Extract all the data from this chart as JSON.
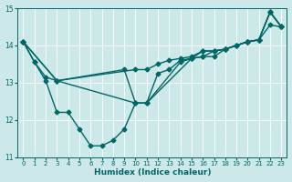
{
  "xlabel": "Humidex (Indice chaleur)",
  "xlim": [
    -0.5,
    23.5
  ],
  "ylim": [
    11,
    15
  ],
  "yticks": [
    11,
    12,
    13,
    14,
    15
  ],
  "xticks": [
    0,
    1,
    2,
    3,
    4,
    5,
    6,
    7,
    8,
    9,
    10,
    11,
    12,
    13,
    14,
    15,
    16,
    17,
    18,
    19,
    20,
    21,
    22,
    23
  ],
  "bg_color": "#cce8e8",
  "line_color": "#006666",
  "grid_color": "#ffffff",
  "lines": [
    {
      "x": [
        0,
        1,
        2,
        3,
        4,
        5,
        6,
        7,
        8,
        9,
        10,
        11,
        12,
        13,
        14,
        15,
        16,
        17,
        18,
        19,
        20,
        21,
        22,
        23
      ],
      "y": [
        14.1,
        13.55,
        13.05,
        12.2,
        12.2,
        11.75,
        11.3,
        11.3,
        11.45,
        11.75,
        12.45,
        12.45,
        13.25,
        13.35,
        13.6,
        13.65,
        13.85,
        13.85,
        13.9,
        14.0,
        14.1,
        14.15,
        14.9,
        14.5
      ]
    },
    {
      "x": [
        0,
        1,
        2,
        3,
        10,
        11,
        12,
        13,
        14,
        15,
        16,
        17,
        18,
        19,
        20,
        21,
        22,
        23
      ],
      "y": [
        14.1,
        13.55,
        13.15,
        13.05,
        13.35,
        13.35,
        13.5,
        13.6,
        13.65,
        13.7,
        13.85,
        13.85,
        13.9,
        14.0,
        14.1,
        14.15,
        14.55,
        14.5
      ]
    },
    {
      "x": [
        0,
        3,
        10,
        11,
        14,
        15,
        16,
        17,
        18,
        19,
        20,
        21,
        22,
        23
      ],
      "y": [
        14.1,
        13.05,
        12.45,
        12.45,
        13.55,
        13.65,
        13.7,
        13.85,
        13.9,
        14.0,
        14.1,
        14.15,
        14.9,
        14.5
      ]
    },
    {
      "x": [
        0,
        3,
        9,
        10,
        11,
        15,
        16,
        17,
        18,
        20,
        21,
        22,
        23
      ],
      "y": [
        14.1,
        13.05,
        13.35,
        12.45,
        12.45,
        13.65,
        13.7,
        13.7,
        13.9,
        14.1,
        14.15,
        14.9,
        14.5
      ]
    }
  ],
  "marker": "D",
  "markersize": 2.5,
  "linewidth": 1.0
}
